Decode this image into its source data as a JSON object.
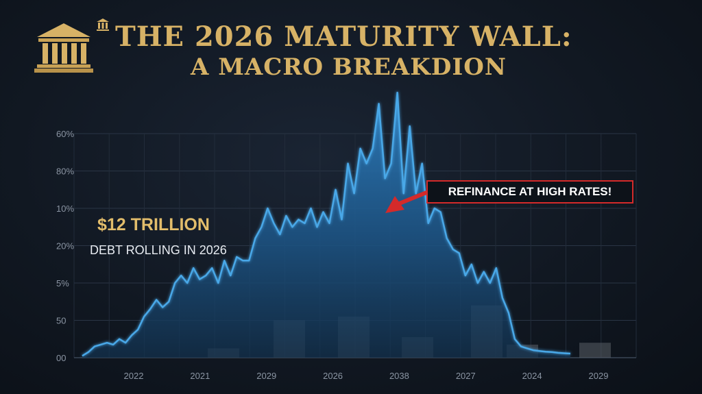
{
  "title": {
    "line1": "THE 2026 MATURITY WALL:",
    "line2": "A MACRO BREAKDION"
  },
  "annotation": {
    "amount": "$12 TRILLION",
    "subtitle": "DEBT ROLLING IN 2026",
    "callout": "REFINANCE AT HIGH RATES!"
  },
  "colors": {
    "gold": "#d7b266",
    "line": "#4aa8e8",
    "area_top": "#2e7fc0",
    "callout_border": "#d42a2a",
    "bars": "#5a5f66"
  },
  "chart_data": {
    "type": "area",
    "xlabel": "",
    "ylabel": "",
    "y_tick_labels": [
      "00",
      "50",
      "5%",
      "20%",
      "10%",
      "80%",
      "60%"
    ],
    "x_tick_labels": [
      "2022",
      "2021",
      "2029",
      "2026",
      "2038",
      "2027",
      "2024",
      "2029"
    ],
    "grid": true,
    "ylim": [
      0,
      60
    ],
    "series": [
      {
        "values": [
          0.5,
          1.5,
          3,
          3.5,
          4,
          3.5,
          5,
          4,
          6,
          7.5,
          11,
          13,
          15.5,
          13.5,
          15,
          20,
          22,
          20,
          24,
          21,
          22,
          24,
          20,
          26,
          22,
          27,
          26,
          26,
          32,
          35,
          40,
          36,
          33,
          38,
          35,
          37,
          36,
          40,
          35,
          39,
          36,
          45,
          37,
          52,
          44,
          56,
          52,
          56,
          68,
          48,
          52,
          71,
          44,
          62,
          44,
          52,
          36,
          40,
          39,
          32,
          29,
          28,
          22,
          25,
          20,
          23,
          20,
          24,
          16,
          12,
          5,
          3,
          2.5,
          2,
          1.8,
          1.6,
          1.5,
          1.3,
          1.2,
          1.1
        ]
      }
    ],
    "bars": [
      {
        "value": 2.5
      },
      {
        "value": 10
      },
      {
        "value": 11
      },
      {
        "value": 5.5
      },
      {
        "value": 14
      },
      {
        "value": 3.5
      },
      {
        "value": 4
      }
    ]
  }
}
